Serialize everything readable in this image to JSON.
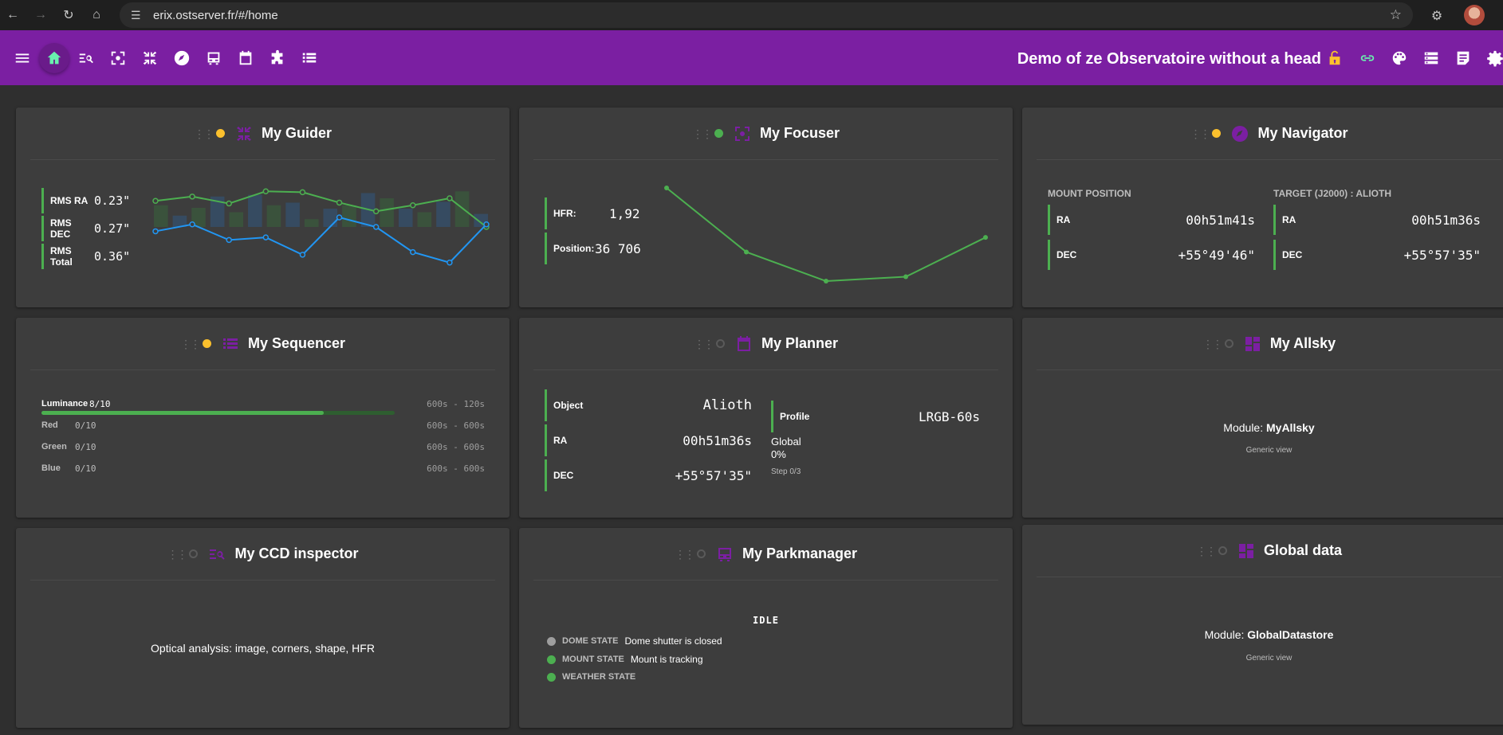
{
  "browser": {
    "url": "erix.ostserver.fr/#/home"
  },
  "toolbar": {
    "title": "Demo of ze Observatoire without a head"
  },
  "guider": {
    "title": "My Guider",
    "rms_ra_label": "RMS RA",
    "rms_ra_value": "0.23\"",
    "rms_dec_label": "RMS DEC",
    "rms_dec_value": "0.27\"",
    "rms_total_label": "RMS Total",
    "rms_total_value": "0.36\"",
    "chart_data": {
      "type": "line",
      "x": [
        1,
        2,
        3,
        4,
        5,
        6,
        7,
        8,
        9,
        10
      ],
      "series": [
        {
          "name": "",
          "color": "#4caf50",
          "values": [
            0.35,
            0.4,
            0.32,
            0.46,
            0.45,
            0.33,
            0.23,
            0.3,
            0.38,
            0.05
          ]
        },
        {
          "name": "",
          "color": "#2196f3",
          "values": [
            0.0,
            0.08,
            -0.1,
            -0.07,
            -0.27,
            0.16,
            0.05,
            -0.24,
            -0.36,
            0.08
          ]
        }
      ],
      "bars": [
        0.3,
        0.18,
        0.27,
        0.4,
        0.22,
        0.42,
        0.3,
        0.33,
        0.14,
        0.26,
        0.3,
        0.44,
        0.38,
        0.26,
        0.22,
        0.34,
        0.46,
        0.2
      ],
      "grid": false
    }
  },
  "focuser": {
    "title": "My Focuser",
    "hfr_label": "HFR:",
    "hfr_value": "1,92",
    "position_label": "Position:",
    "position_value": "36 706",
    "chart_data": {
      "type": "line",
      "x": [
        1,
        2,
        3,
        4,
        5
      ],
      "series": [
        {
          "name": "",
          "color": "#4caf50",
          "values": [
            5.0,
            2.8,
            1.8,
            1.95,
            3.3
          ]
        }
      ]
    }
  },
  "navigator": {
    "title": "My Navigator",
    "mount_label": "MOUNT POSITION",
    "target_label": "TARGET (J2000) : ALIOTH",
    "ra_label": "RA",
    "dec_label": "DEC",
    "mount_ra": "00h51m41s",
    "mount_dec": "+55°49'46\"",
    "target_ra": "00h51m36s",
    "target_dec": "+55°57'35\""
  },
  "sequencer": {
    "title": "My Sequencer",
    "rows": [
      {
        "name": "Luminance",
        "count": "8/10",
        "times": "600s - 120s",
        "progress": 0.8
      },
      {
        "name": "Red",
        "count": "0/10",
        "times": "600s - 600s",
        "progress": 0
      },
      {
        "name": "Green",
        "count": "0/10",
        "times": "600s - 600s",
        "progress": 0
      },
      {
        "name": "Blue",
        "count": "0/10",
        "times": "600s - 600s",
        "progress": 0
      }
    ]
  },
  "planner": {
    "title": "My Planner",
    "object_label": "Object",
    "object_value": "Alioth",
    "ra_label": "RA",
    "ra_value": "00h51m36s",
    "dec_label": "DEC",
    "dec_value": "+55°57'35\"",
    "profile_label": "Profile",
    "profile_value": "LRGB-60s",
    "global_label": "Global",
    "global_value": "0%",
    "step_label": "Step 0/3"
  },
  "allsky": {
    "title": "My Allsky",
    "module_prefix": "Module: ",
    "module_name": "MyAllsky",
    "generic": "Generic view"
  },
  "ccd": {
    "title": "My CCD inspector",
    "description": "Optical analysis: image, corners, shape, HFR"
  },
  "parkmanager": {
    "title": "My Parkmanager",
    "status": "IDLE",
    "states": [
      {
        "key": "DOME STATE",
        "value": "Dome shutter is closed",
        "color": "#9e9e9e"
      },
      {
        "key": "MOUNT STATE",
        "value": "Mount is tracking",
        "color": "#4caf50"
      },
      {
        "key": "WEATHER STATE",
        "value": "",
        "color": "#4caf50"
      }
    ]
  },
  "globaldata": {
    "title": "Global data",
    "module_prefix": "Module: ",
    "module_name": "GlobalDatastore",
    "generic": "Generic view"
  }
}
